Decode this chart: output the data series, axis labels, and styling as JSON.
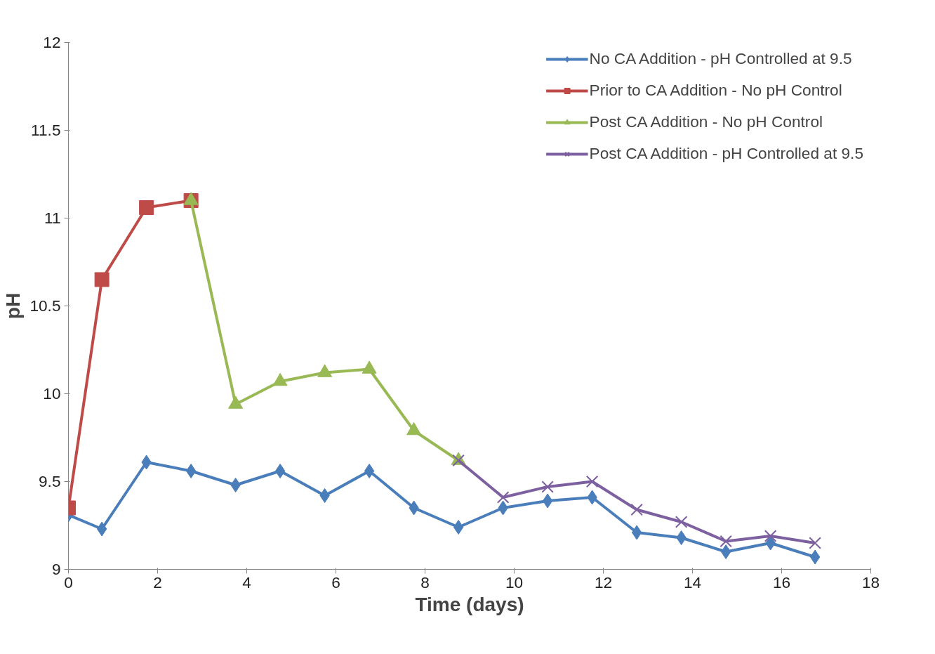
{
  "chart_data": {
    "type": "line",
    "xlabel": "Time (days)",
    "ylabel": "pH",
    "xlim": [
      0,
      18
    ],
    "ylim": [
      9,
      12
    ],
    "xticks": [
      0,
      2,
      4,
      6,
      8,
      10,
      12,
      14,
      16,
      18
    ],
    "yticks": [
      9,
      {
        "value": 9.5,
        "label": "9.5"
      },
      10,
      {
        "value": 10.5,
        "label": "10.5"
      },
      11,
      {
        "value": 11.5,
        "label": "11.5"
      },
      12
    ],
    "grid": false,
    "legend": "top right",
    "line_style": "solid",
    "series": [
      {
        "name": "No CA Addition - pH Controlled at 9.5",
        "color": "#4a7ebb",
        "marker": "diamond",
        "x": [
          0,
          0.75,
          1.75,
          2.75,
          3.75,
          4.75,
          5.75,
          6.75,
          7.75,
          8.75,
          9.75,
          10.75,
          11.75,
          12.75,
          13.75,
          14.75,
          15.75,
          16.75
        ],
        "values": [
          9.31,
          9.23,
          9.61,
          9.56,
          9.48,
          9.56,
          9.42,
          9.56,
          9.35,
          9.24,
          9.35,
          9.39,
          9.41,
          9.21,
          9.18,
          9.1,
          9.15,
          9.07
        ]
      },
      {
        "name": "Prior to CA Addition - No pH Control",
        "color": "#be4b48",
        "marker": "square",
        "x": [
          0,
          0.75,
          1.75,
          2.75
        ],
        "values": [
          9.35,
          10.65,
          11.06,
          11.1
        ]
      },
      {
        "name": "Post CA Addition - No pH Control",
        "color": "#98b954",
        "marker": "triangle",
        "x": [
          2.75,
          3.75,
          4.75,
          5.75,
          6.75,
          7.75,
          8.75
        ],
        "values": [
          11.1,
          9.94,
          10.07,
          10.12,
          10.14,
          9.79,
          9.62
        ]
      },
      {
        "name": "Post CA Addition - pH Controlled at 9.5",
        "color": "#7d60a0",
        "marker": "cross",
        "x": [
          8.75,
          9.75,
          10.75,
          11.75,
          12.75,
          13.75,
          14.75,
          15.75,
          16.75
        ],
        "values": [
          9.62,
          9.41,
          9.47,
          9.5,
          9.34,
          9.27,
          9.16,
          9.19,
          9.15
        ]
      }
    ]
  }
}
